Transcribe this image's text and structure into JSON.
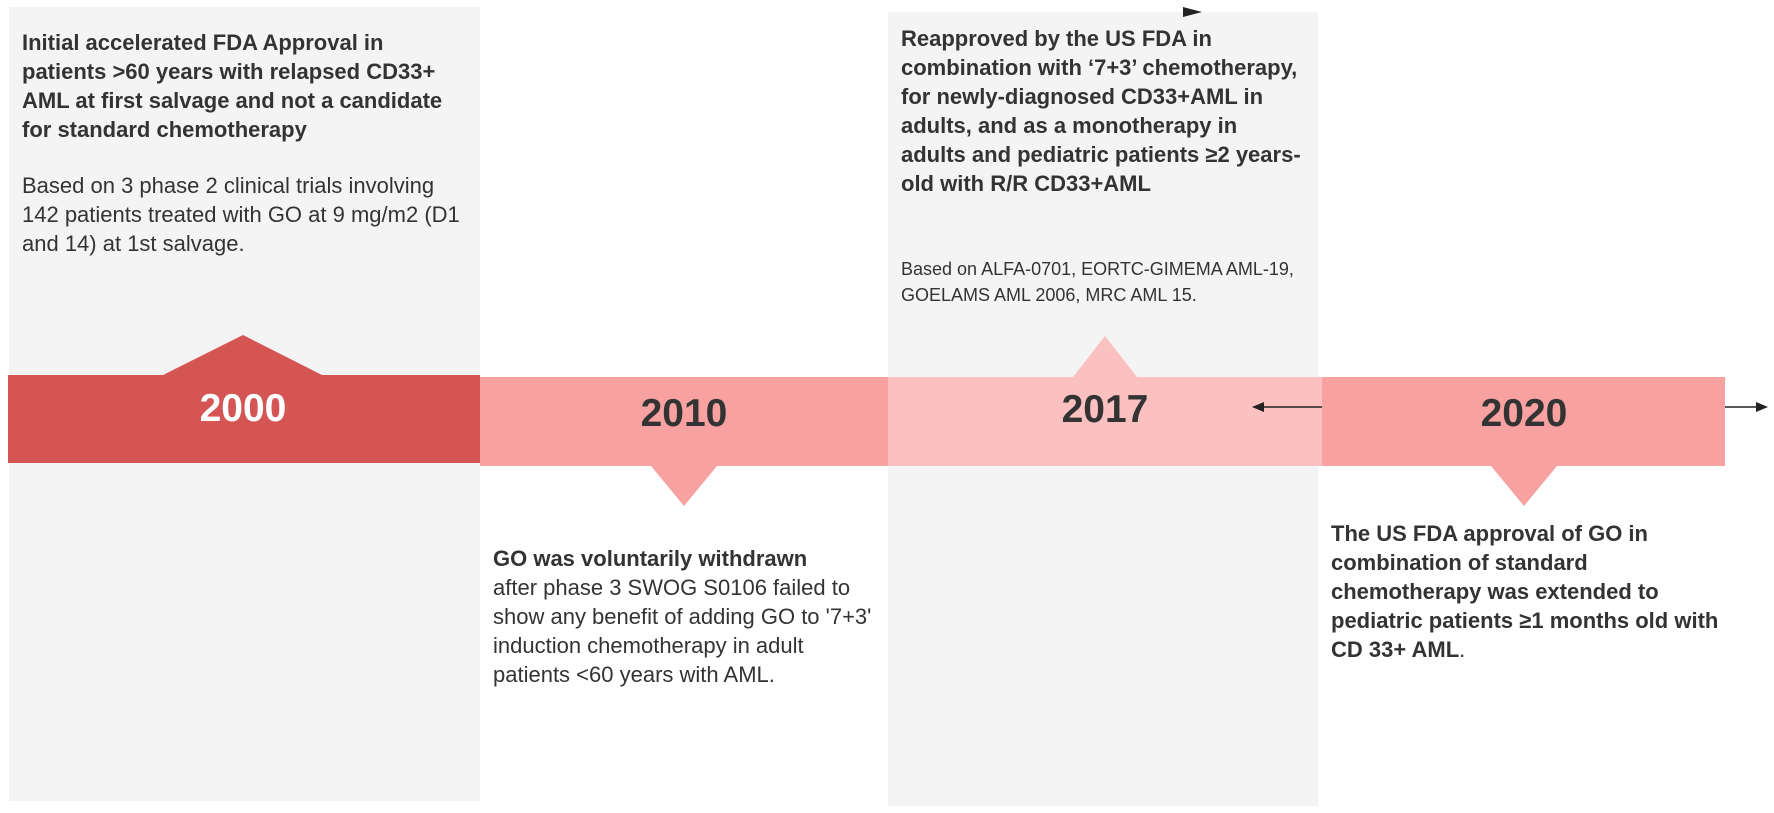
{
  "colors": {
    "panel_bg": "#f4f4f4",
    "band_2000": "#d55555",
    "band_2010": "#f8a1a1",
    "band_2017": "#fbc0c0",
    "band_2020": "#f8a1a1",
    "text": "#333333",
    "year_2000_text": "#ffffff"
  },
  "milestones": [
    {
      "year": "2000",
      "title": "Initial accelerated FDA Approval in patients >60 years with relapsed CD33+ AML at first salvage and not a candidate for standard chemotherapy",
      "detail": "Based on 3 phase 2 clinical trials involving 142 patients treated with GO at 9 mg/m2 (D1 and 14) at 1st salvage."
    },
    {
      "year": "2010",
      "title": "GO was voluntarily withdrawn",
      "detail": "after phase 3 SWOG S0106 failed to show any benefit of adding GO to '7+3' induction chemotherapy in adult patients <60 years with AML."
    },
    {
      "year": "2017",
      "title": "Reapproved by the US FDA in combination with ‘7+3’ chemotherapy, for newly-diagnosed CD33+AML in adults, and as a monotherapy in adults and pediatric patients ≥2 years-old with R/R CD33+AML",
      "detail": "Based on ALFA-0701, EORTC-GIMEMA AML-19, GOELAMS AML 2006, MRC AML 15."
    },
    {
      "year": "2020",
      "title": "The US FDA approval of GO in combination of standard chemotherapy was extended to pediatric patients ≥1 months old with CD 33+ AML",
      "detail": "."
    }
  ],
  "icons": [
    "arrow-right-icon",
    "arrow-left-icon"
  ]
}
